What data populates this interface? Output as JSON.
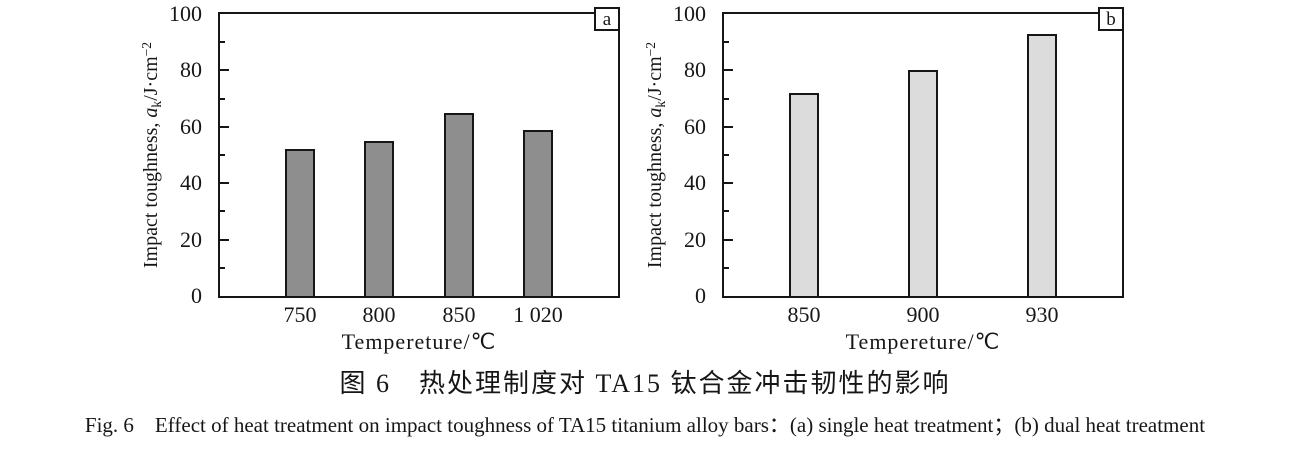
{
  "figure": {
    "caption_zh": "图 6　热处理制度对 TA15 钛合金冲击韧性的影响",
    "caption_en": "Fig. 6　Effect of heat treatment on impact toughness of TA15 titanium alloy bars：(a) single heat treatment；(b) dual heat treatment"
  },
  "axes": {
    "ylabel": {
      "prefix": "Impact toughness, ",
      "var": "a",
      "sub": "k",
      "unit": "/J·cm",
      "sup": "−2"
    },
    "yticks": [
      0,
      20,
      40,
      60,
      80,
      100
    ],
    "yticks_minor": [
      10,
      30,
      50,
      70,
      90
    ],
    "ylim": [
      0,
      100
    ],
    "axis_color": "#161616"
  },
  "chart_data": [
    {
      "type": "bar",
      "panel": "a",
      "title": "single heat treatment",
      "categories": [
        "750",
        "800",
        "850",
        "1 020"
      ],
      "values": [
        52,
        55,
        65,
        59
      ],
      "xlabel": "Tempereture/℃",
      "ylabel": "Impact toughness, aₖ/J·cm⁻²",
      "ylim": [
        0,
        100
      ],
      "grid": false,
      "legend": "none",
      "bar_color": "#8e8e8e",
      "bar_centers": [
        0.2,
        0.4,
        0.6,
        0.8
      ]
    },
    {
      "type": "bar",
      "panel": "b",
      "title": "dual heat treatment",
      "categories": [
        "850",
        "900",
        "930"
      ],
      "values": [
        72,
        80,
        93
      ],
      "xlabel": "Tempereture/℃",
      "ylabel": "Impact toughness, aₖ/J·cm⁻²",
      "ylim": [
        0,
        100
      ],
      "grid": false,
      "legend": "none",
      "bar_color": "#dcdcdc",
      "bar_centers": [
        0.2,
        0.5,
        0.8
      ]
    }
  ]
}
